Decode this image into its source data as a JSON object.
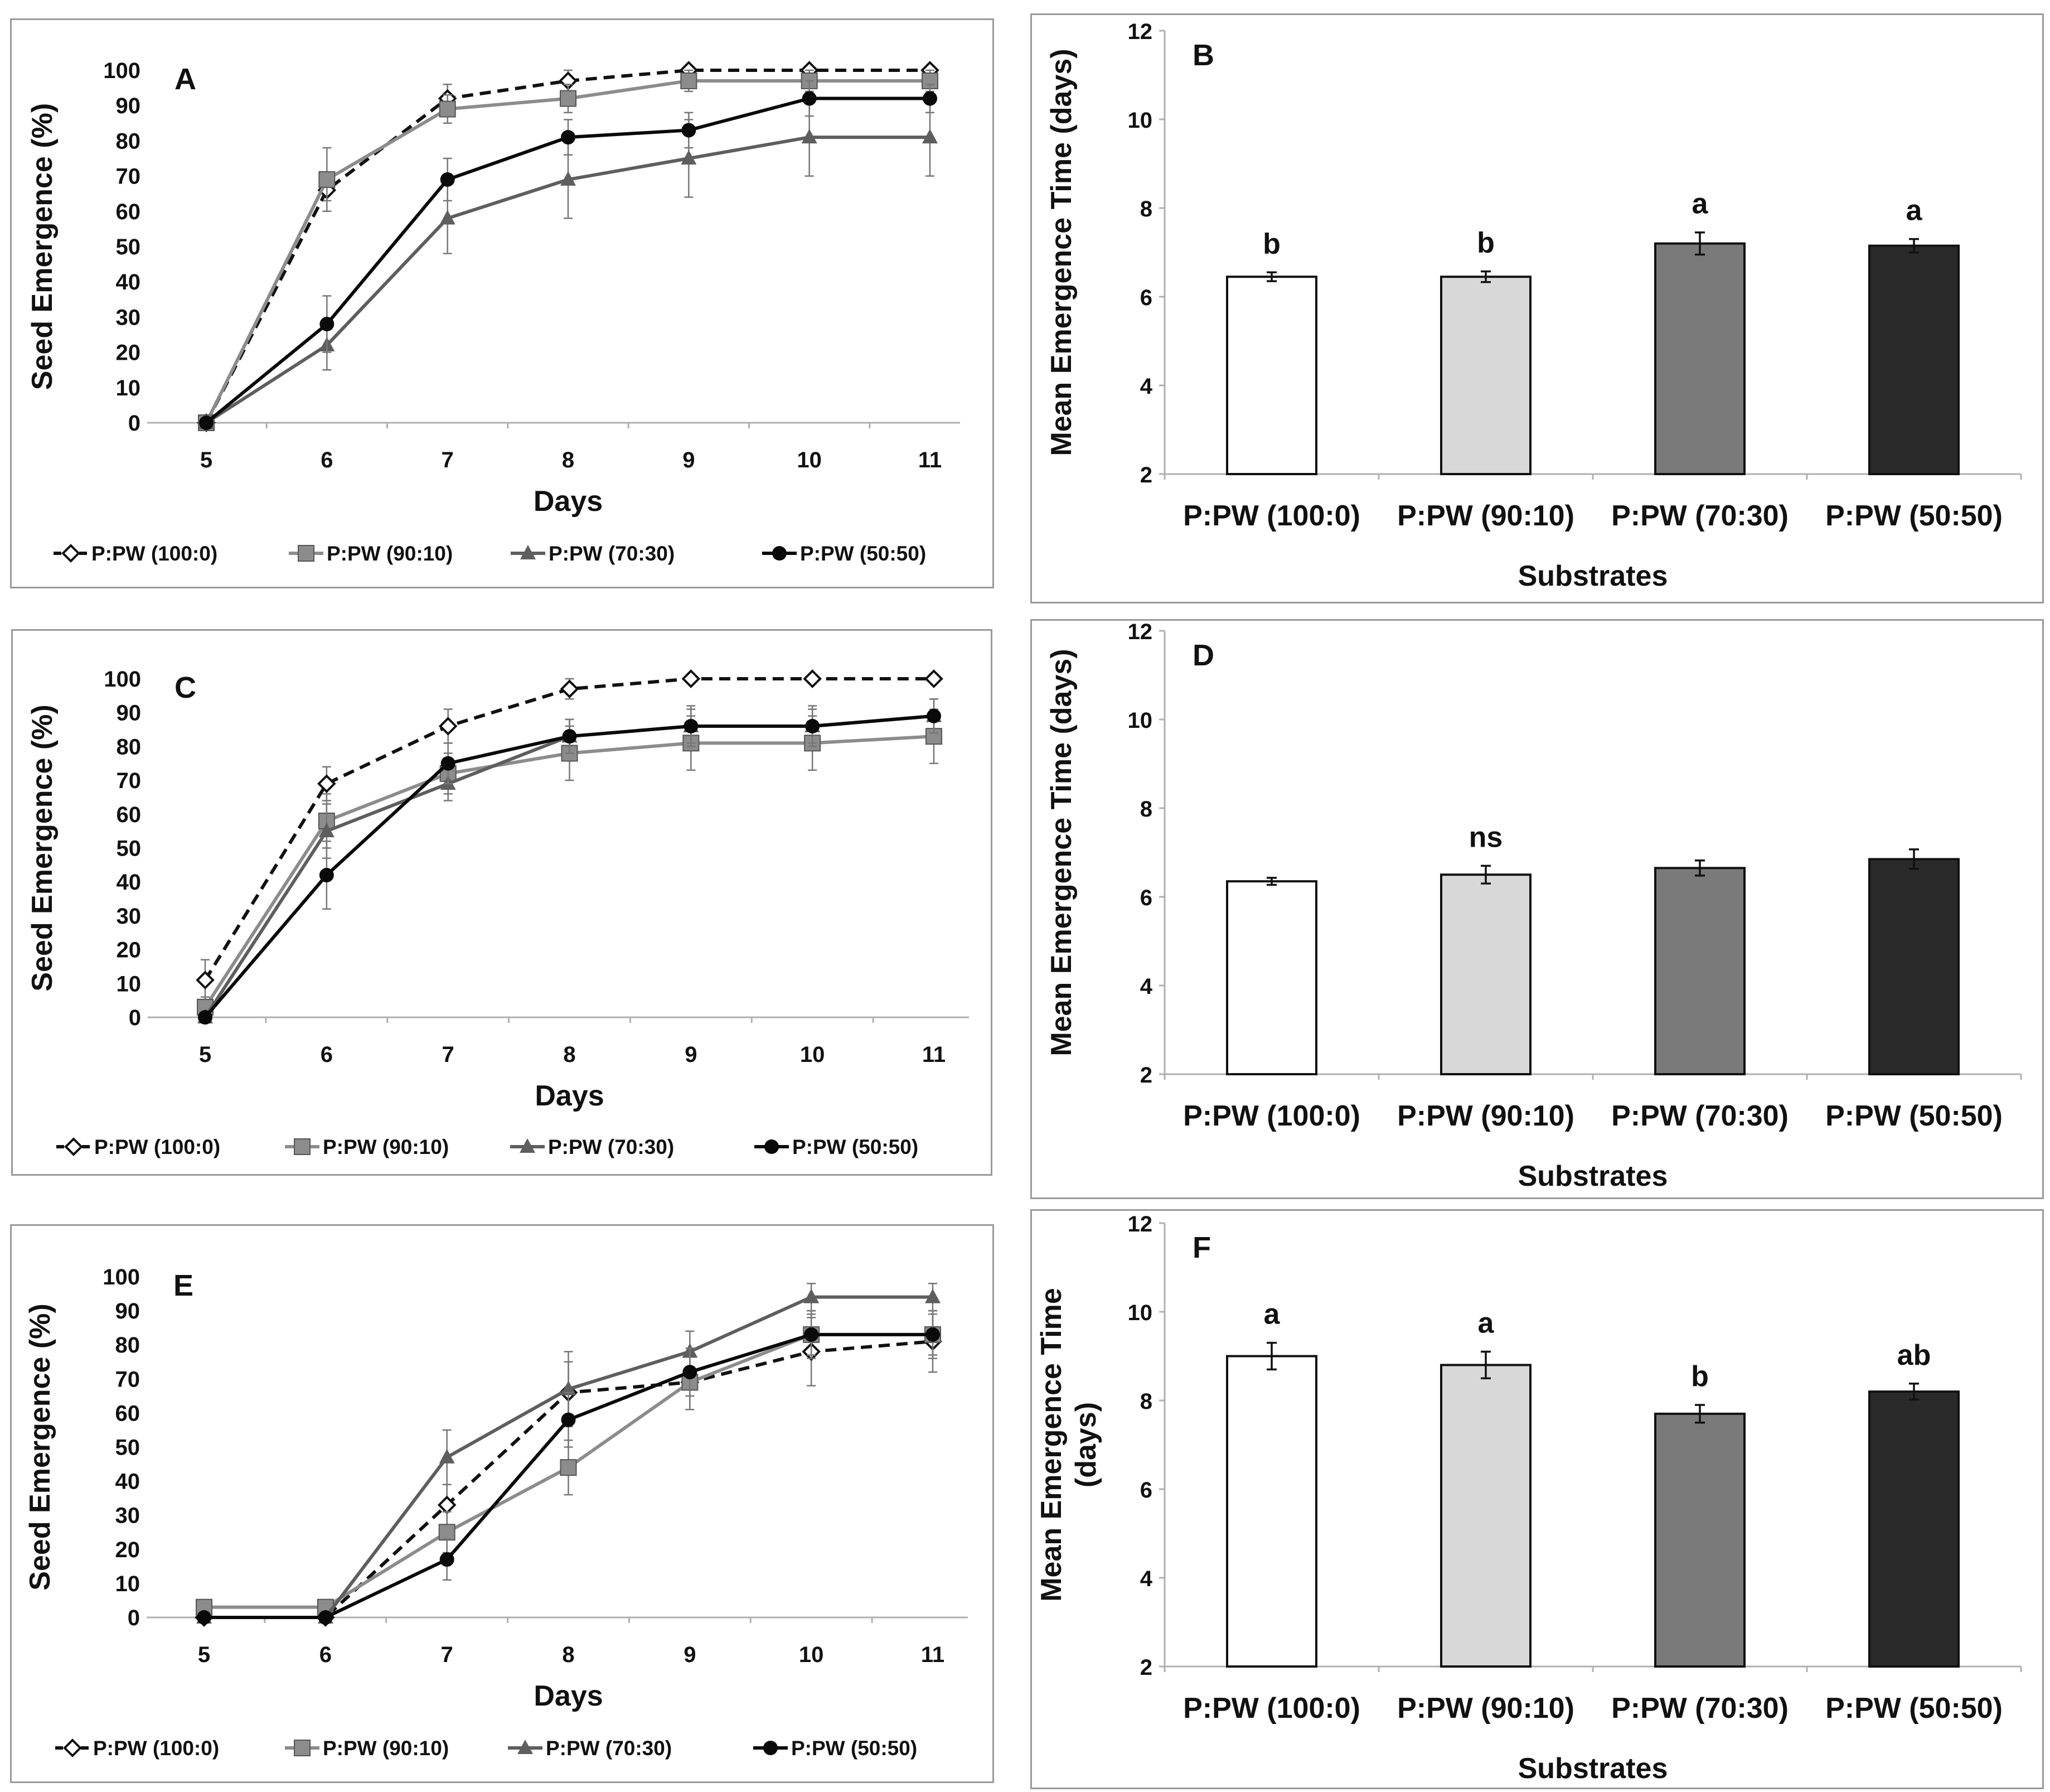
{
  "chart_data": [
    {
      "id": "A",
      "type": "line",
      "panel_label": "A",
      "xlabel": "Days",
      "ylabel": "Seed Emergence (%)",
      "x": [
        5,
        6,
        7,
        8,
        9,
        10,
        11
      ],
      "y_ticks": [
        0,
        10,
        20,
        30,
        40,
        50,
        60,
        70,
        80,
        90,
        100
      ],
      "ylim": [
        0,
        100
      ],
      "series": [
        {
          "name": "P:PW (100:0)",
          "values": [
            0,
            66,
            92,
            97,
            100,
            100,
            100
          ],
          "errors": [
            0,
            3,
            4,
            3,
            1,
            1,
            1
          ],
          "color": "#111111",
          "dash": true,
          "marker": "diamond-open"
        },
        {
          "name": "P:PW (90:10)",
          "values": [
            0,
            69,
            89,
            92,
            97,
            97,
            97
          ],
          "errors": [
            0,
            9,
            4,
            4,
            3,
            3,
            3
          ],
          "color": "#8c8c8c",
          "dash": false,
          "marker": "square"
        },
        {
          "name": "P:PW (70:30)",
          "values": [
            0,
            22,
            58,
            69,
            75,
            81,
            81
          ],
          "errors": [
            0,
            7,
            10,
            11,
            11,
            11,
            11
          ],
          "color": "#5e5e5e",
          "dash": false,
          "marker": "triangle"
        },
        {
          "name": "P:PW (50:50)",
          "values": [
            0,
            28,
            69,
            81,
            83,
            92,
            92
          ],
          "errors": [
            0,
            8,
            6,
            5,
            5,
            5,
            4
          ],
          "color": "#0a0a0a",
          "dash": false,
          "marker": "circle"
        }
      ]
    },
    {
      "id": "B",
      "type": "bar",
      "panel_label": "B",
      "xlabel": "Substrates",
      "ylabel": "Mean Emergence  Time (days)",
      "categories": [
        "P:PW (100:0)",
        "P:PW (90:10)",
        "P:PW (70:30)",
        "P:PW (50:50)"
      ],
      "values": [
        6.45,
        6.45,
        7.2,
        7.15
      ],
      "errors": [
        0.1,
        0.12,
        0.25,
        0.15
      ],
      "colors": [
        "#ffffff",
        "#d8d8d8",
        "#7a7a7a",
        "#2a2a2a"
      ],
      "letters": [
        "b",
        "b",
        "a",
        "a"
      ],
      "y_ticks": [
        2,
        4,
        6,
        8,
        10,
        12
      ],
      "ylim": [
        2,
        12
      ]
    },
    {
      "id": "C",
      "type": "line",
      "panel_label": "C",
      "xlabel": "Days",
      "ylabel": "Seed Emergence (%)",
      "x": [
        5,
        6,
        7,
        8,
        9,
        10,
        11
      ],
      "y_ticks": [
        0,
        10,
        20,
        30,
        40,
        50,
        60,
        70,
        80,
        90,
        100
      ],
      "ylim": [
        0,
        100
      ],
      "series": [
        {
          "name": "P:PW (100:0)",
          "values": [
            11,
            69,
            86,
            97,
            100,
            100,
            100
          ],
          "errors": [
            6,
            5,
            5,
            3,
            1,
            1,
            1
          ],
          "color": "#111111",
          "dash": true,
          "marker": "diamond-open"
        },
        {
          "name": "P:PW (90:10)",
          "values": [
            3,
            58,
            72,
            78,
            81,
            81,
            83
          ],
          "errors": [
            3,
            8,
            6,
            8,
            8,
            8,
            8
          ],
          "color": "#8c8c8c",
          "dash": false,
          "marker": "square"
        },
        {
          "name": "P:PW (70:30)",
          "values": [
            0,
            55,
            69,
            83,
            86,
            86,
            89
          ],
          "errors": [
            0,
            8,
            5,
            5,
            6,
            6,
            5
          ],
          "color": "#5e5e5e",
          "dash": false,
          "marker": "triangle"
        },
        {
          "name": "P:PW (50:50)",
          "values": [
            0,
            42,
            75,
            83,
            86,
            86,
            89
          ],
          "errors": [
            0,
            10,
            6,
            5,
            5,
            5,
            5
          ],
          "color": "#0a0a0a",
          "dash": false,
          "marker": "circle"
        }
      ]
    },
    {
      "id": "D",
      "type": "bar",
      "panel_label": "D",
      "xlabel": "Substrates",
      "ylabel": "Mean Emergence  Time (days)",
      "categories": [
        "P:PW (100:0)",
        "P:PW (90:10)",
        "P:PW (70:30)",
        "P:PW (50:50)"
      ],
      "values": [
        6.35,
        6.5,
        6.65,
        6.85
      ],
      "errors": [
        0.08,
        0.2,
        0.17,
        0.22
      ],
      "colors": [
        "#ffffff",
        "#d8d8d8",
        "#7a7a7a",
        "#2a2a2a"
      ],
      "letters": [
        "",
        "ns",
        "",
        ""
      ],
      "y_ticks": [
        2,
        4,
        6,
        8,
        10,
        12
      ],
      "ylim": [
        2,
        12
      ]
    },
    {
      "id": "E",
      "type": "line",
      "panel_label": "E",
      "xlabel": "Days",
      "ylabel": "Seed Emergence (%)",
      "x": [
        5,
        6,
        7,
        8,
        9,
        10,
        11
      ],
      "y_ticks": [
        0,
        10,
        20,
        30,
        40,
        50,
        60,
        70,
        80,
        90,
        100
      ],
      "ylim": [
        0,
        100
      ],
      "series": [
        {
          "name": "P:PW (100:0)",
          "values": [
            0,
            0,
            33,
            66,
            69,
            78,
            81
          ],
          "errors": [
            0,
            0,
            6,
            9,
            8,
            10,
            9
          ],
          "color": "#111111",
          "dash": true,
          "marker": "diamond-open"
        },
        {
          "name": "P:PW (90:10)",
          "values": [
            3,
            3,
            25,
            44,
            69,
            83,
            83
          ],
          "errors": [
            0,
            0,
            6,
            8,
            8,
            7,
            7
          ],
          "color": "#8c8c8c",
          "dash": false,
          "marker": "square"
        },
        {
          "name": "P:PW (70:30)",
          "values": [
            0,
            0,
            47,
            67,
            78,
            94,
            94
          ],
          "errors": [
            0,
            0,
            8,
            11,
            6,
            4,
            4
          ],
          "color": "#5e5e5e",
          "dash": false,
          "marker": "triangle"
        },
        {
          "name": "P:PW (50:50)",
          "values": [
            0,
            0,
            17,
            58,
            72,
            83,
            83
          ],
          "errors": [
            0,
            0,
            6,
            8,
            7,
            6,
            6
          ],
          "color": "#0a0a0a",
          "dash": false,
          "marker": "circle"
        }
      ]
    },
    {
      "id": "F",
      "type": "bar",
      "panel_label": "F",
      "xlabel": "Substrates",
      "ylabel": "Mean Emergence  Time (days)",
      "ylabel_lines": [
        "Mean Emergence  Time",
        "(days)"
      ],
      "categories": [
        "P:PW (100:0)",
        "P:PW (90:10)",
        "P:PW (70:30)",
        "P:PW (50:50)"
      ],
      "values": [
        9.0,
        8.8,
        7.7,
        8.2
      ],
      "errors": [
        0.3,
        0.3,
        0.2,
        0.18
      ],
      "colors": [
        "#ffffff",
        "#d8d8d8",
        "#7a7a7a",
        "#2a2a2a"
      ],
      "letters": [
        "a",
        "a",
        "b",
        "ab"
      ],
      "y_ticks": [
        2,
        4,
        6,
        8,
        10,
        12
      ],
      "ylim": [
        2,
        12
      ]
    }
  ]
}
